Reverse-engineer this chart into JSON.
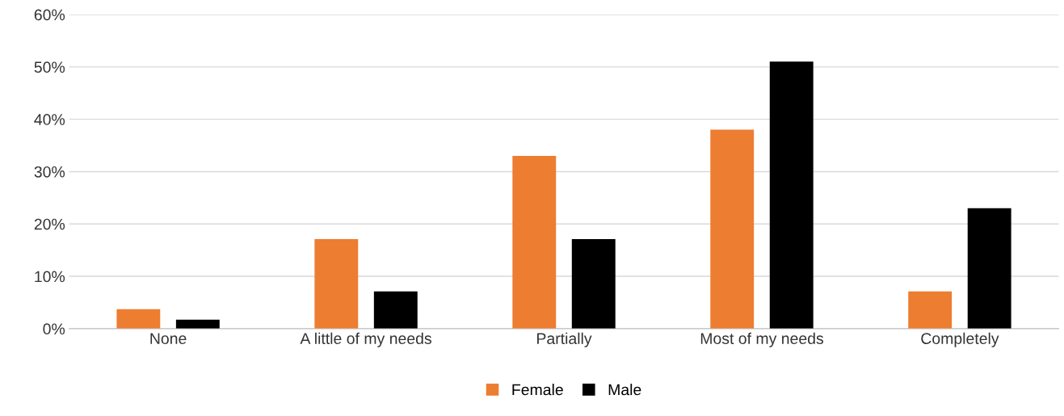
{
  "chart_data": {
    "type": "bar",
    "categories": [
      "None",
      "A little of my needs",
      "Partially",
      "Most of my needs",
      "Completely"
    ],
    "series": [
      {
        "name": "Female",
        "color": "#ed7d31",
        "values": [
          3.7,
          17.1,
          33,
          38,
          7.1
        ]
      },
      {
        "name": "Male",
        "color": "#000000",
        "values": [
          1.7,
          7.1,
          17.1,
          51,
          23
        ]
      }
    ],
    "ylim": [
      0,
      60
    ],
    "yticks": [
      {
        "value": 0,
        "label": "0%"
      },
      {
        "value": 10,
        "label": "10%"
      },
      {
        "value": 20,
        "label": "20%"
      },
      {
        "value": 30,
        "label": "30%"
      },
      {
        "value": 40,
        "label": "40%"
      },
      {
        "value": 50,
        "label": "50%"
      },
      {
        "value": 60,
        "label": "60%"
      }
    ],
    "grid": "y",
    "legend": "bottom"
  }
}
